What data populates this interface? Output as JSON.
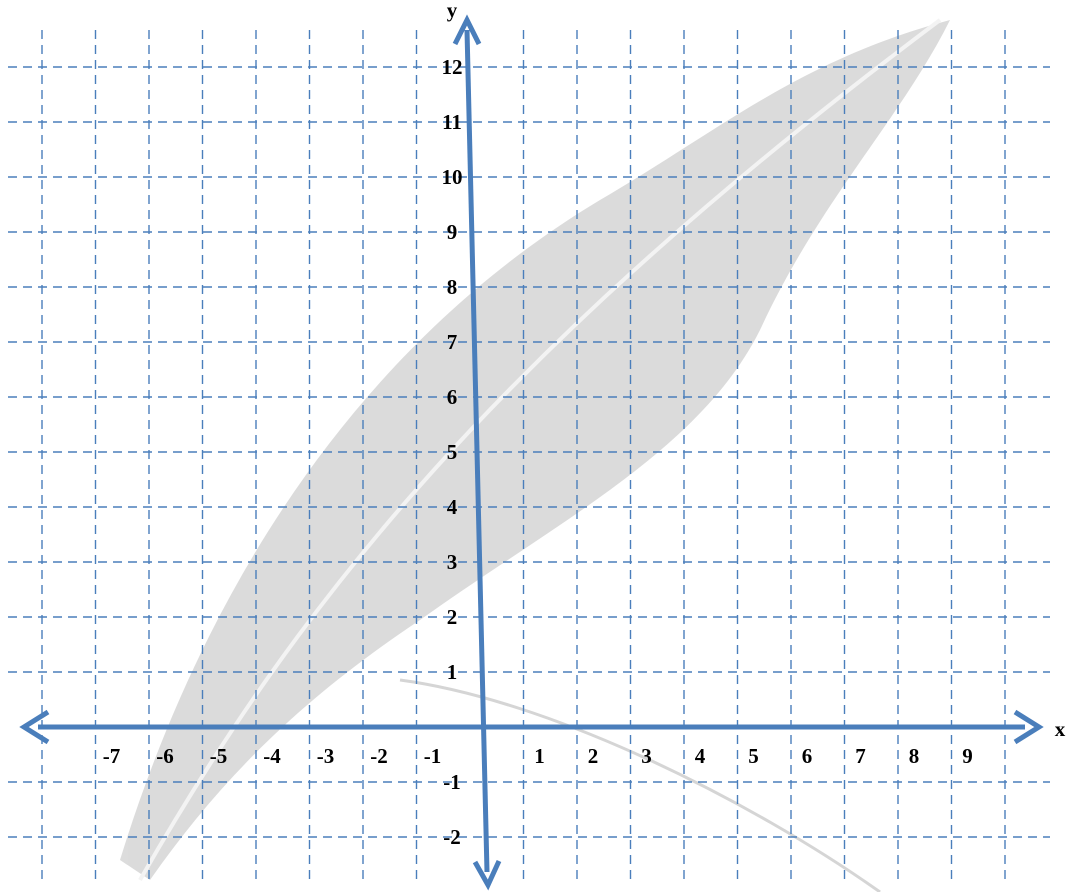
{
  "axes": {
    "x_label": "x",
    "y_label": "y",
    "x_ticks": [
      -7,
      -6,
      -5,
      -4,
      -3,
      -2,
      -1,
      1,
      2,
      3,
      4,
      5,
      6,
      7,
      8,
      9
    ],
    "y_ticks": [
      12,
      11,
      10,
      9,
      8,
      7,
      6,
      5,
      4,
      3,
      2,
      1,
      -1,
      -2
    ]
  }
}
